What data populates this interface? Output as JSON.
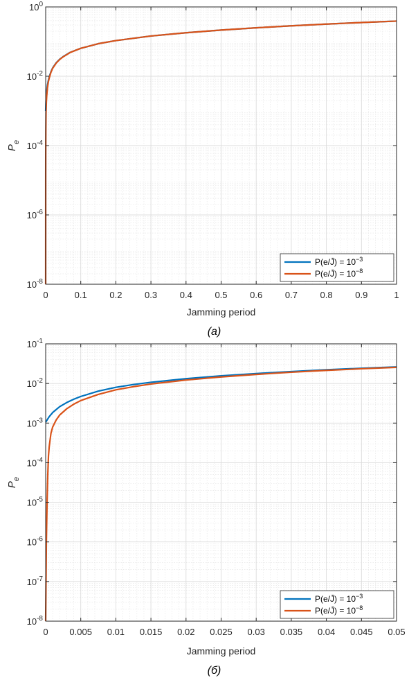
{
  "chart_data": [
    {
      "type": "line",
      "caption": "(a)",
      "xlabel": "Jamming period",
      "ylabel": "P",
      "ylabel_sub": "e",
      "xlim": [
        0,
        1
      ],
      "ylim": [
        1e-08,
        1
      ],
      "yscale": "log",
      "grid": true,
      "minor_grid": true,
      "legend_position": "bottom-right",
      "x_ticks": [
        0,
        0.1,
        0.2,
        0.3,
        0.4,
        0.5,
        0.6,
        0.7,
        0.8,
        0.9,
        1
      ],
      "x_tick_labels": [
        "0",
        "0.1",
        "0.2",
        "0.3",
        "0.4",
        "0.5",
        "0.6",
        "0.7",
        "0.8",
        "0.9",
        "1"
      ],
      "y_ticks": [
        1e-08,
        1e-06,
        0.0001,
        0.01,
        1
      ],
      "y_tick_labels": [
        {
          "base": "10",
          "exp": "-8"
        },
        {
          "base": "10",
          "exp": "-6"
        },
        {
          "base": "10",
          "exp": "-4"
        },
        {
          "base": "10",
          "exp": "-2"
        },
        {
          "base": "10",
          "exp": "0"
        }
      ],
      "series": [
        {
          "name": "P(e/J̄) = 10^-3",
          "legend_label": {
            "lhs": "P(e/J̄) = 10",
            "exp": "−3"
          },
          "color": "#0072BD",
          "x": [
            0,
            0.0005,
            0.001,
            0.002,
            0.003,
            0.005,
            0.0075,
            0.01,
            0.015,
            0.02,
            0.03,
            0.04,
            0.05,
            0.07,
            0.1,
            0.15,
            0.2,
            0.3,
            0.4,
            0.5,
            0.6,
            0.7,
            0.8,
            0.9,
            1.0
          ],
          "y": [
            0.001,
            0.0015,
            0.002,
            0.0029,
            0.0038,
            0.0055,
            0.0075,
            0.0095,
            0.0135,
            0.0175,
            0.0245,
            0.031,
            0.037,
            0.049,
            0.064,
            0.087,
            0.107,
            0.145,
            0.18,
            0.215,
            0.25,
            0.285,
            0.32,
            0.355,
            0.39
          ]
        },
        {
          "name": "P(e/J̄) = 10^-8",
          "legend_label": {
            "lhs": "P(e/J̄) = 10",
            "exp": "−8"
          },
          "color": "#D95319",
          "x": [
            0,
            0.0001,
            0.0002,
            0.0005,
            0.001,
            0.002,
            0.003,
            0.005,
            0.0075,
            0.01,
            0.015,
            0.02,
            0.03,
            0.04,
            0.05,
            0.07,
            0.1,
            0.15,
            0.2,
            0.3,
            0.4,
            0.5,
            0.6,
            0.7,
            0.8,
            0.9,
            1.0
          ],
          "y": [
            1e-08,
            1e-05,
            5e-05,
            0.00025,
            0.0009,
            0.0018,
            0.0027,
            0.0046,
            0.0068,
            0.0088,
            0.013,
            0.017,
            0.024,
            0.0305,
            0.0365,
            0.0485,
            0.064,
            0.087,
            0.107,
            0.145,
            0.18,
            0.215,
            0.25,
            0.285,
            0.32,
            0.355,
            0.39
          ]
        }
      ]
    },
    {
      "type": "line",
      "caption": "(б)",
      "xlabel": "Jamming period",
      "ylabel": "P",
      "ylabel_sub": "e",
      "xlim": [
        0,
        0.05
      ],
      "ylim": [
        1e-08,
        0.1
      ],
      "yscale": "log",
      "grid": true,
      "minor_grid": true,
      "legend_position": "bottom-right",
      "x_ticks": [
        0,
        0.005,
        0.01,
        0.015,
        0.02,
        0.025,
        0.03,
        0.035,
        0.04,
        0.045,
        0.05
      ],
      "x_tick_labels": [
        "0",
        "0.005",
        "0.01",
        "0.015",
        "0.02",
        "0.025",
        "0.03",
        "0.035",
        "0.04",
        "0.045",
        "0.05"
      ],
      "y_ticks": [
        1e-08,
        1e-07,
        1e-06,
        1e-05,
        0.0001,
        0.001,
        0.01,
        0.1
      ],
      "y_tick_labels": [
        {
          "base": "10",
          "exp": "-8"
        },
        {
          "base": "10",
          "exp": "-7"
        },
        {
          "base": "10",
          "exp": "-6"
        },
        {
          "base": "10",
          "exp": "-5"
        },
        {
          "base": "10",
          "exp": "-4"
        },
        {
          "base": "10",
          "exp": "-3"
        },
        {
          "base": "10",
          "exp": "-2"
        },
        {
          "base": "10",
          "exp": "-1"
        }
      ],
      "series": [
        {
          "name": "P(e/J̄) = 10^-3",
          "legend_label": {
            "lhs": "P(e/J̄) = 10",
            "exp": "−3"
          },
          "color": "#0072BD",
          "x": [
            0,
            0.0005,
            0.001,
            0.002,
            0.003,
            0.004,
            0.005,
            0.0075,
            0.01,
            0.0125,
            0.015,
            0.02,
            0.025,
            0.03,
            0.035,
            0.04,
            0.045,
            0.05
          ],
          "y": [
            0.00105,
            0.00145,
            0.00185,
            0.0026,
            0.0033,
            0.004,
            0.0047,
            0.0064,
            0.008,
            0.0094,
            0.0107,
            0.0132,
            0.0156,
            0.0178,
            0.02,
            0.0222,
            0.0242,
            0.0262
          ]
        },
        {
          "name": "P(e/J̄) = 10^-8",
          "legend_label": {
            "lhs": "P(e/J̄) = 10",
            "exp": "−8"
          },
          "color": "#D95319",
          "x": [
            0,
            5e-05,
            0.0001,
            0.0002,
            0.0003,
            0.0004,
            0.0005,
            0.00075,
            0.001,
            0.0015,
            0.002,
            0.003,
            0.004,
            0.005,
            0.0075,
            0.01,
            0.0125,
            0.015,
            0.02,
            0.025,
            0.03,
            0.035,
            0.04,
            0.045,
            0.05
          ],
          "y": [
            1e-08,
            1e-07,
            1e-06,
            1e-05,
            5e-05,
            0.00015,
            0.00025,
            0.00055,
            0.0008,
            0.0012,
            0.0016,
            0.0023,
            0.003,
            0.0037,
            0.0053,
            0.0069,
            0.0083,
            0.0097,
            0.0122,
            0.0146,
            0.0169,
            0.0192,
            0.0214,
            0.0235,
            0.0255
          ]
        }
      ]
    }
  ]
}
